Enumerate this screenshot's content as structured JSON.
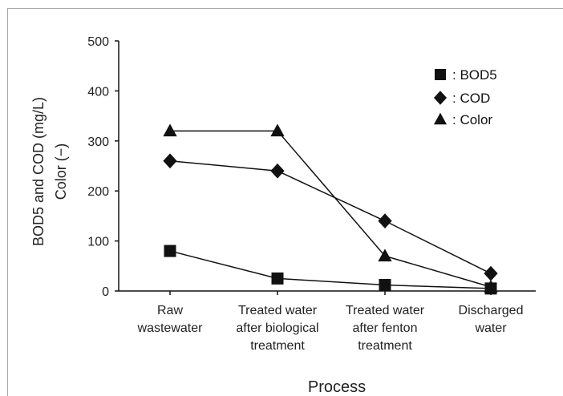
{
  "chart_data": {
    "type": "line",
    "categories": [
      [
        "Raw",
        "wastewater"
      ],
      [
        "Treated water",
        "after biological",
        "treatment"
      ],
      [
        "Treated water",
        "after fenton",
        "treatment"
      ],
      [
        "Discharged",
        "water"
      ]
    ],
    "series": [
      {
        "name": "BOD5",
        "legend_label": ":  BOD5",
        "marker": "square",
        "values": [
          80,
          25,
          12,
          5
        ]
      },
      {
        "name": "COD",
        "legend_label": ":  COD",
        "marker": "diamond",
        "values": [
          260,
          240,
          140,
          35
        ]
      },
      {
        "name": "Color",
        "legend_label": ":  Color",
        "marker": "triangle",
        "values": [
          320,
          320,
          70,
          8
        ]
      }
    ],
    "ylim": [
      0,
      500
    ],
    "yticks": [
      0,
      100,
      200,
      300,
      400,
      500
    ],
    "ylabel_line1": "BOD5 and COD (mg/L)",
    "ylabel_line2": "Color (−)",
    "xlabel": "Process",
    "grid": false,
    "legend_position": "top-right"
  }
}
